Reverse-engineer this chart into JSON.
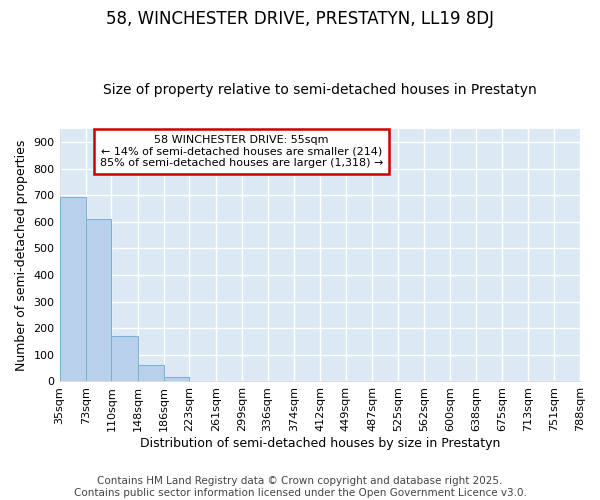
{
  "title": "58, WINCHESTER DRIVE, PRESTATYN, LL19 8DJ",
  "subtitle": "Size of property relative to semi-detached houses in Prestatyn",
  "xlabel": "Distribution of semi-detached houses by size in Prestatyn",
  "ylabel": "Number of semi-detached properties",
  "bar_color": "#b8d0ea",
  "bar_edge_color": "#7aafd4",
  "bin_edges": [
    35,
    73,
    110,
    148,
    186,
    223,
    261,
    299,
    336,
    374,
    412,
    449,
    487,
    525,
    562,
    600,
    638,
    675,
    713,
    751,
    788
  ],
  "bin_labels": [
    "35sqm",
    "73sqm",
    "110sqm",
    "148sqm",
    "186sqm",
    "223sqm",
    "261sqm",
    "299sqm",
    "336sqm",
    "374sqm",
    "412sqm",
    "449sqm",
    "487sqm",
    "525sqm",
    "562sqm",
    "600sqm",
    "638sqm",
    "675sqm",
    "713sqm",
    "751sqm",
    "788sqm"
  ],
  "counts": [
    695,
    610,
    170,
    60,
    18,
    3,
    0,
    0,
    0,
    0,
    0,
    0,
    0,
    0,
    0,
    0,
    0,
    0,
    0,
    0
  ],
  "ylim": [
    0,
    950
  ],
  "yticks": [
    0,
    100,
    200,
    300,
    400,
    500,
    600,
    700,
    800,
    900
  ],
  "annotation_title": "58 WINCHESTER DRIVE: 55sqm",
  "annotation_line2": "← 14% of semi-detached houses are smaller (214)",
  "annotation_line3": "85% of semi-detached houses are larger (1,318) →",
  "annotation_box_color": "#ffffff",
  "annotation_box_edge": "#cc0000",
  "footer_line1": "Contains HM Land Registry data © Crown copyright and database right 2025.",
  "footer_line2": "Contains public sector information licensed under the Open Government Licence v3.0.",
  "fig_bg_color": "#ffffff",
  "plot_bg_color": "#dce9f5",
  "grid_color": "#ffffff",
  "title_fontsize": 12,
  "subtitle_fontsize": 10,
  "axis_label_fontsize": 9,
  "tick_fontsize": 8,
  "footer_fontsize": 7.5,
  "annotation_fontsize": 8
}
